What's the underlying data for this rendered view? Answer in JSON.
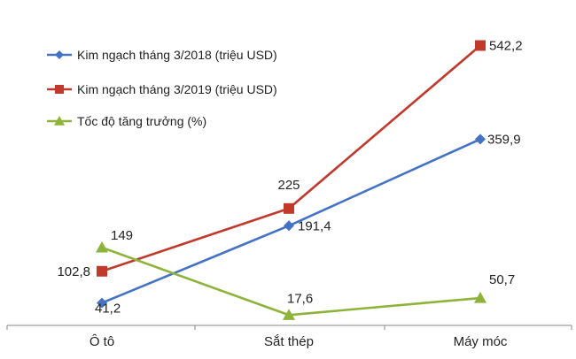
{
  "chart_data": {
    "type": "line",
    "categories": [
      "Ô tô",
      "Sắt thép",
      "Máy móc"
    ],
    "series": [
      {
        "name": "Kim ngạch tháng 3/2018 (triệu USD)",
        "values": [
          41.2,
          191.4,
          359.9
        ],
        "labels": [
          "41,2",
          "191,4",
          "359,9"
        ],
        "color": "#4472C4",
        "marker": "diamond"
      },
      {
        "name": "Kim ngạch tháng 3/2019 (triệu USD)",
        "values": [
          102.8,
          225,
          542.2
        ],
        "labels": [
          "102,8",
          "225",
          "542,2"
        ],
        "color": "#C0392B",
        "marker": "square"
      },
      {
        "name": "Tốc độ tăng trưởng (%)",
        "values": [
          149,
          17.6,
          50.7
        ],
        "labels": [
          "149",
          "17,6",
          "50,7"
        ],
        "color": "#8DB33A",
        "marker": "triangle"
      }
    ],
    "title": "",
    "xlabel": "",
    "ylabel": "",
    "ylim": [
      0,
      600
    ],
    "grid": false,
    "legend": "top-left"
  }
}
